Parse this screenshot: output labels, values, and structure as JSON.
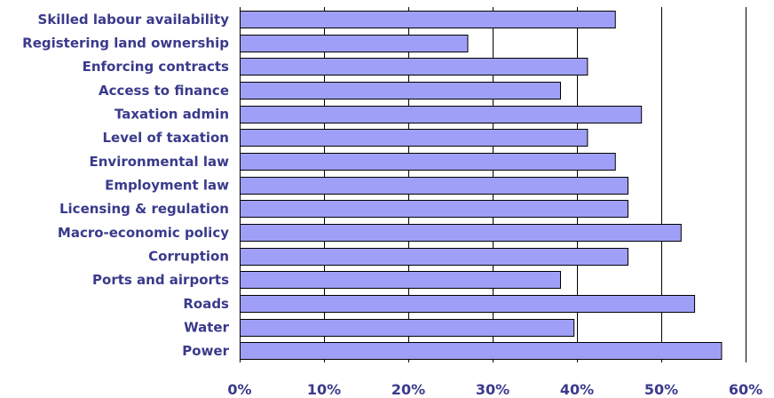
{
  "chart_data": {
    "type": "bar",
    "orientation": "horizontal",
    "categories": [
      "Skilled labour availability",
      "Registering land ownership",
      "Enforcing contracts",
      "Access to finance",
      "Taxation admin",
      "Level of taxation",
      "Environmental law",
      "Employment law",
      "Licensing & regulation",
      "Macro-economic policy",
      "Corruption",
      "Ports and airports",
      "Roads",
      "Water",
      "Power"
    ],
    "values": [
      0.445,
      0.27,
      0.412,
      0.38,
      0.476,
      0.412,
      0.445,
      0.46,
      0.46,
      0.523,
      0.46,
      0.38,
      0.539,
      0.396,
      0.571
    ],
    "xlim": [
      0,
      0.6
    ],
    "x_ticks": [
      0,
      0.1,
      0.2,
      0.3,
      0.4,
      0.5,
      0.6
    ],
    "x_tick_labels": [
      "0%",
      "10%",
      "20%",
      "30%",
      "40%",
      "50%",
      "60%"
    ],
    "grid": "vertical",
    "colors": {
      "bar_fill": "#9f9ff7",
      "bar_stroke": "#000000",
      "label": "#3a3a8c"
    }
  }
}
